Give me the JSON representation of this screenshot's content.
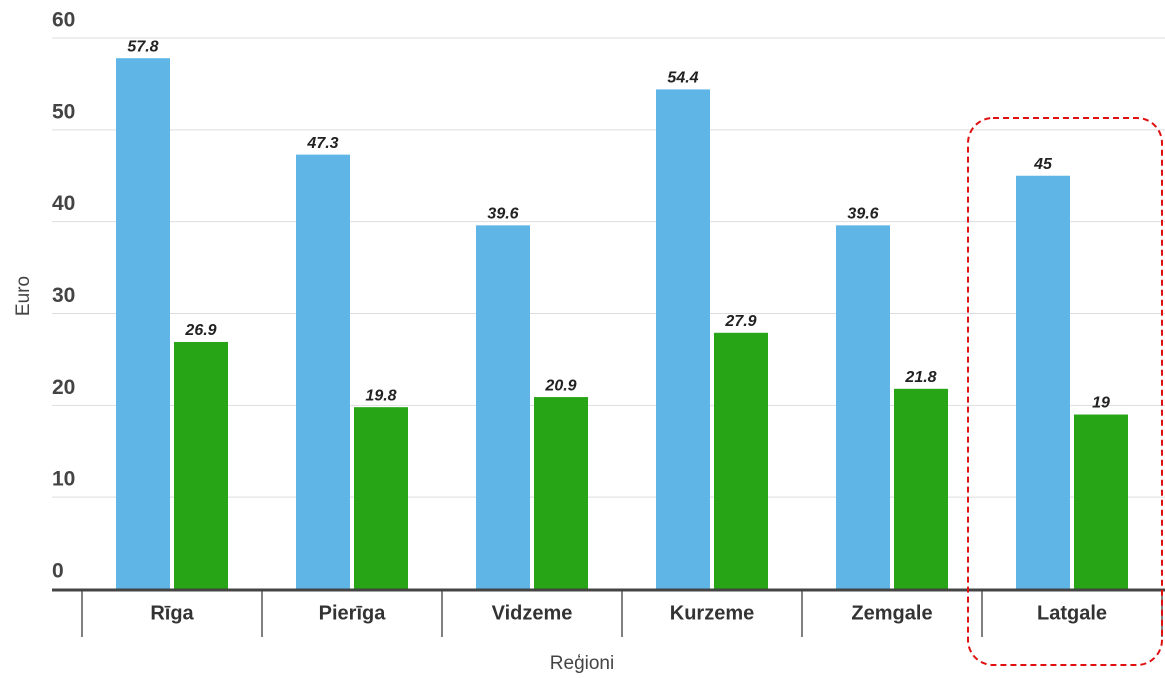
{
  "chart_data": {
    "type": "bar",
    "categories": [
      "Rīga",
      "Pierīga",
      "Vidzeme",
      "Kurzeme",
      "Zemgale",
      "Latgale"
    ],
    "series": [
      {
        "color": "#5fb5e6",
        "values": [
          57.8,
          47.3,
          39.6,
          54.4,
          39.6,
          45
        ]
      },
      {
        "color": "#27a516",
        "values": [
          26.9,
          19.8,
          20.9,
          27.9,
          21.8,
          19
        ]
      }
    ],
    "xlabel": "Reģioni",
    "ylabel": "Euro",
    "ylim": [
      0,
      60
    ],
    "yticks": [
      0,
      10,
      20,
      30,
      40,
      50,
      60
    ],
    "grid": true
  }
}
